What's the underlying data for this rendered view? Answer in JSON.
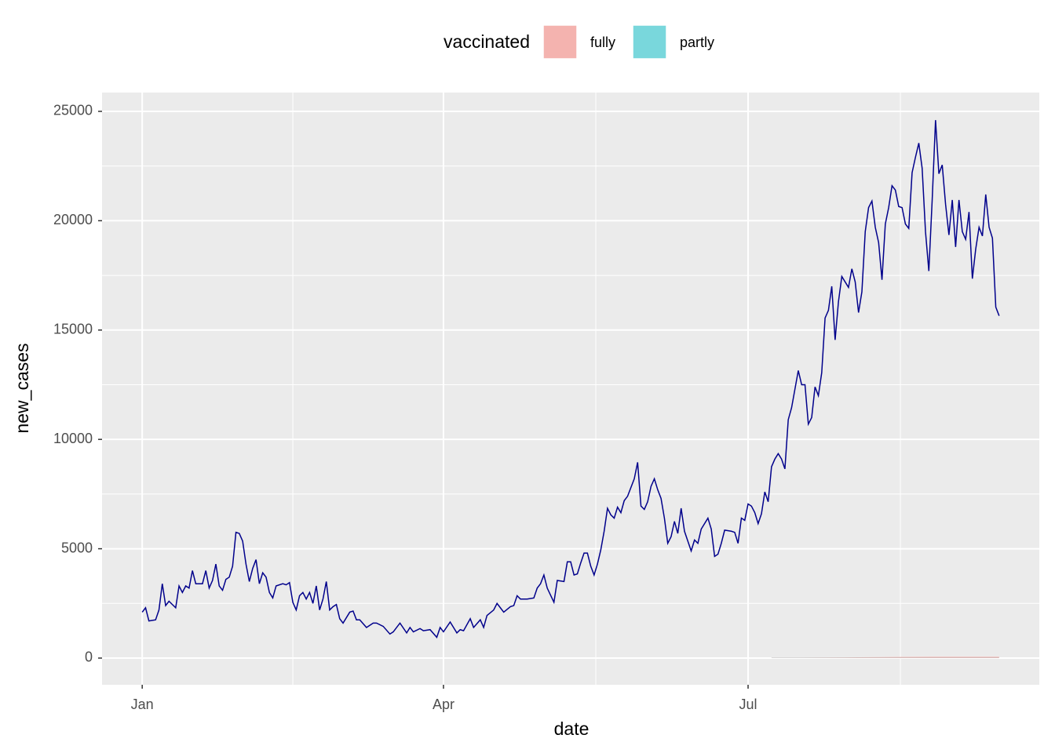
{
  "chart_data": {
    "type": "line",
    "x_label": "date",
    "y_label": "new_cases",
    "legend_title": "vaccinated",
    "legend_position": "top",
    "grid": true,
    "xlim": [
      -12,
      268
    ],
    "ylim": [
      -1220,
      25860
    ],
    "xticks": [
      {
        "value": 0,
        "label": "Jan"
      },
      {
        "value": 90,
        "label": "Apr"
      },
      {
        "value": 181,
        "label": "Jul"
      }
    ],
    "yticks": [
      0,
      5000,
      10000,
      15000,
      20000,
      25000
    ],
    "x": [
      0,
      1,
      2,
      4,
      5,
      6,
      7,
      8,
      10,
      11,
      12,
      13,
      14,
      15,
      16,
      18,
      19,
      20,
      21,
      22,
      23,
      24,
      25,
      26,
      27,
      28,
      29,
      30,
      31,
      32,
      33,
      34,
      35,
      36,
      37,
      38,
      39,
      40,
      42,
      43,
      44,
      45,
      46,
      47,
      48,
      49,
      50,
      51,
      52,
      53,
      54,
      55,
      56,
      57,
      58,
      59,
      60,
      62,
      63,
      64,
      65,
      67,
      69,
      70,
      72,
      74,
      75,
      77,
      79,
      80,
      81,
      83,
      84,
      86,
      88,
      89,
      90,
      92,
      94,
      95,
      96,
      98,
      99,
      101,
      102,
      103,
      105,
      106,
      107,
      108,
      110,
      111,
      112,
      113,
      115,
      117,
      118,
      119,
      120,
      121,
      123,
      124,
      126,
      127,
      128,
      129,
      130,
      131,
      132,
      133,
      134,
      135,
      136,
      137,
      138,
      139,
      140,
      141,
      142,
      143,
      144,
      145,
      147,
      148,
      149,
      150,
      151,
      152,
      153,
      154,
      155,
      156,
      157,
      158,
      159,
      160,
      161,
      162,
      163,
      164,
      165,
      166,
      167,
      169,
      170,
      171,
      172,
      173,
      174,
      176,
      177,
      178,
      179,
      180,
      181,
      182,
      183,
      184,
      185,
      186,
      187,
      188,
      189,
      190,
      191,
      192,
      193,
      194,
      196,
      197,
      198,
      199,
      200,
      201,
      202,
      203,
      204,
      205,
      206,
      207,
      208,
      209,
      210,
      211,
      212,
      213,
      214,
      215,
      216,
      217,
      218,
      219,
      220,
      221,
      222,
      223,
      224,
      225,
      226,
      227,
      228,
      229,
      230,
      231,
      232,
      233,
      234,
      235,
      236,
      237,
      238,
      239,
      240,
      241,
      242,
      243,
      244,
      245,
      246,
      247,
      248,
      249,
      250,
      251,
      252,
      253,
      254,
      255,
      256
    ],
    "series": [
      {
        "type": "line",
        "color": "#00008b",
        "values": [
          2100,
          2300,
          1700,
          1750,
          2200,
          3400,
          2400,
          2600,
          2300,
          3300,
          3000,
          3300,
          3200,
          4000,
          3400,
          3400,
          4000,
          3200,
          3550,
          4300,
          3300,
          3100,
          3600,
          3700,
          4200,
          5750,
          5700,
          5350,
          4300,
          3500,
          4100,
          4500,
          3400,
          3900,
          3700,
          3000,
          2750,
          3300,
          3400,
          3350,
          3450,
          2550,
          2200,
          2850,
          3000,
          2700,
          3000,
          2500,
          3300,
          2200,
          2700,
          3500,
          2200,
          2350,
          2450,
          1800,
          1600,
          2100,
          2150,
          1750,
          1750,
          1400,
          1600,
          1600,
          1450,
          1100,
          1200,
          1600,
          1150,
          1400,
          1200,
          1350,
          1250,
          1300,
          950,
          1400,
          1200,
          1650,
          1150,
          1300,
          1250,
          1800,
          1400,
          1750,
          1400,
          1950,
          2200,
          2500,
          2300,
          2100,
          2350,
          2400,
          2850,
          2700,
          2700,
          2750,
          3200,
          3400,
          3800,
          3200,
          2550,
          3550,
          3500,
          4400,
          4400,
          3800,
          3850,
          4350,
          4800,
          4800,
          4200,
          3800,
          4300,
          4950,
          5800,
          6850,
          6550,
          6400,
          6900,
          6650,
          7200,
          7400,
          8200,
          8950,
          6950,
          6800,
          7150,
          7850,
          8200,
          7700,
          7300,
          6400,
          5250,
          5550,
          6250,
          5700,
          6850,
          5800,
          5350,
          4900,
          5400,
          5250,
          5900,
          6400,
          5900,
          4650,
          4750,
          5250,
          5850,
          5800,
          5750,
          5250,
          6400,
          6300,
          7050,
          6950,
          6650,
          6150,
          6600,
          7600,
          7150,
          8750,
          9100,
          9350,
          9100,
          8650,
          10900,
          11450,
          13150,
          12500,
          12500,
          10700,
          11000,
          12400,
          12000,
          13050,
          15550,
          15900,
          17000,
          14550,
          16300,
          17450,
          17200,
          16950,
          17800,
          17200,
          15800,
          16750,
          19500,
          20600,
          20900,
          19700,
          19000,
          17300,
          19850,
          20600,
          21600,
          21400,
          20650,
          20600,
          19850,
          19650,
          22200,
          22900,
          23550,
          22400,
          19500,
          17700,
          20950,
          24600,
          22150,
          22550,
          20750,
          19350,
          20950,
          18800,
          20950,
          19500,
          19150,
          20400,
          17350,
          18700,
          19700,
          19300,
          21200,
          19700,
          19200,
          16050,
          15650
        ]
      },
      {
        "type": "area",
        "name": "fully",
        "color": "#f4b3af",
        "x": [
          188,
          210,
          236,
          256
        ],
        "values": [
          20,
          30,
          60,
          60
        ]
      },
      {
        "type": "area",
        "name": "partly",
        "color": "#79d7dc",
        "x": [
          188,
          256
        ],
        "values": [
          10,
          10
        ]
      }
    ]
  }
}
